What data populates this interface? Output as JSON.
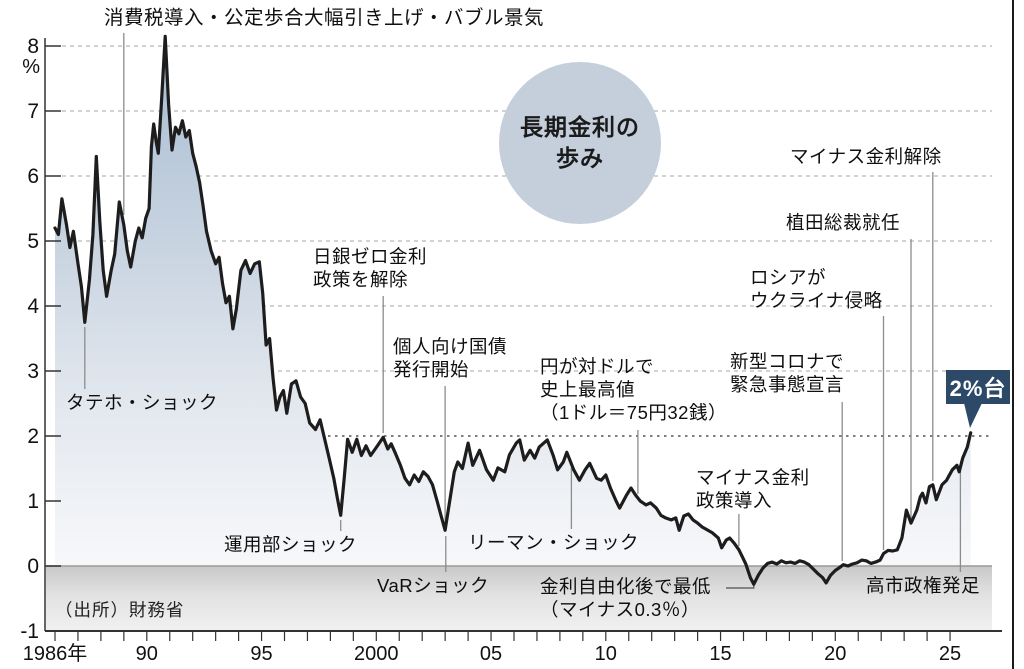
{
  "chart_data": {
    "type": "area",
    "title": "長期金利の\n歩み",
    "unit_label": "%",
    "source": "（出所）財務省",
    "badge": {
      "label": "2%台",
      "color": "#2c4a68"
    },
    "legend": "none",
    "grid": "dashed horizontal lines at 2-8%",
    "xlim": [
      1986,
      2026
    ],
    "ylim": [
      -1,
      8.3
    ],
    "y_ticks": [
      8,
      7,
      6,
      5,
      4,
      3,
      2,
      1,
      0,
      -1
    ],
    "grid_levels": [
      2,
      3,
      4,
      5,
      6,
      7,
      8
    ],
    "x_ticks": [
      {
        "label": "1986年",
        "year": 1986
      },
      {
        "label": "90",
        "year": 1990
      },
      {
        "label": "95",
        "year": 1995
      },
      {
        "label": "2000",
        "year": 2000
      },
      {
        "label": "05",
        "year": 2005
      },
      {
        "label": "10",
        "year": 2010
      },
      {
        "label": "15",
        "year": 2015
      },
      {
        "label": "20",
        "year": 2020
      },
      {
        "label": "25",
        "year": 2025
      }
    ],
    "series": [
      {
        "name": "長期金利",
        "unit": "%",
        "points": [
          [
            1986.0,
            5.2
          ],
          [
            1986.15,
            5.1
          ],
          [
            1986.3,
            5.65
          ],
          [
            1986.5,
            5.25
          ],
          [
            1986.65,
            4.9
          ],
          [
            1986.8,
            5.15
          ],
          [
            1987.0,
            4.65
          ],
          [
            1987.15,
            4.3
          ],
          [
            1987.3,
            3.75
          ],
          [
            1987.5,
            4.4
          ],
          [
            1987.65,
            5.1
          ],
          [
            1987.8,
            6.3
          ],
          [
            1987.95,
            5.3
          ],
          [
            1988.1,
            4.55
          ],
          [
            1988.25,
            4.15
          ],
          [
            1988.45,
            4.55
          ],
          [
            1988.6,
            4.8
          ],
          [
            1988.8,
            5.6
          ],
          [
            1989.0,
            5.25
          ],
          [
            1989.15,
            4.85
          ],
          [
            1989.3,
            4.6
          ],
          [
            1989.5,
            5.0
          ],
          [
            1989.65,
            5.2
          ],
          [
            1989.8,
            5.05
          ],
          [
            1989.95,
            5.35
          ],
          [
            1990.1,
            5.5
          ],
          [
            1990.2,
            6.45
          ],
          [
            1990.3,
            6.8
          ],
          [
            1990.4,
            6.55
          ],
          [
            1990.5,
            6.35
          ],
          [
            1990.65,
            7.2
          ],
          [
            1990.8,
            8.15
          ],
          [
            1990.95,
            7.1
          ],
          [
            1991.1,
            6.4
          ],
          [
            1991.25,
            6.75
          ],
          [
            1991.4,
            6.65
          ],
          [
            1991.55,
            6.85
          ],
          [
            1991.7,
            6.6
          ],
          [
            1991.85,
            6.7
          ],
          [
            1992.0,
            6.35
          ],
          [
            1992.15,
            6.15
          ],
          [
            1992.3,
            5.9
          ],
          [
            1992.45,
            5.55
          ],
          [
            1992.6,
            5.15
          ],
          [
            1992.8,
            4.85
          ],
          [
            1993.0,
            4.65
          ],
          [
            1993.15,
            4.75
          ],
          [
            1993.3,
            4.35
          ],
          [
            1993.45,
            4.05
          ],
          [
            1993.6,
            4.15
          ],
          [
            1993.75,
            3.65
          ],
          [
            1993.9,
            3.95
          ],
          [
            1994.1,
            4.55
          ],
          [
            1994.3,
            4.7
          ],
          [
            1994.5,
            4.5
          ],
          [
            1994.7,
            4.65
          ],
          [
            1994.9,
            4.68
          ],
          [
            1995.05,
            4.2
          ],
          [
            1995.2,
            3.4
          ],
          [
            1995.35,
            3.5
          ],
          [
            1995.5,
            2.9
          ],
          [
            1995.65,
            2.4
          ],
          [
            1995.8,
            2.6
          ],
          [
            1995.95,
            2.7
          ],
          [
            1996.1,
            2.35
          ],
          [
            1996.3,
            2.8
          ],
          [
            1996.5,
            2.85
          ],
          [
            1996.7,
            2.6
          ],
          [
            1996.9,
            2.5
          ],
          [
            1997.1,
            2.2
          ],
          [
            1997.35,
            2.1
          ],
          [
            1997.55,
            2.25
          ],
          [
            1997.75,
            1.95
          ],
          [
            1997.95,
            1.65
          ],
          [
            1998.15,
            1.35
          ],
          [
            1998.3,
            1.05
          ],
          [
            1998.45,
            0.78
          ],
          [
            1998.6,
            1.35
          ],
          [
            1998.75,
            1.95
          ],
          [
            1998.95,
            1.75
          ],
          [
            1999.15,
            1.95
          ],
          [
            1999.35,
            1.7
          ],
          [
            1999.55,
            1.85
          ],
          [
            1999.75,
            1.7
          ],
          [
            1999.95,
            1.8
          ],
          [
            2000.15,
            1.9
          ],
          [
            2000.3,
            1.98
          ],
          [
            2000.5,
            1.8
          ],
          [
            2000.65,
            1.88
          ],
          [
            2000.85,
            1.72
          ],
          [
            2001.05,
            1.55
          ],
          [
            2001.25,
            1.35
          ],
          [
            2001.45,
            1.25
          ],
          [
            2001.65,
            1.4
          ],
          [
            2001.85,
            1.3
          ],
          [
            2002.05,
            1.45
          ],
          [
            2002.25,
            1.38
          ],
          [
            2002.45,
            1.25
          ],
          [
            2002.65,
            1.0
          ],
          [
            2002.8,
            0.8
          ],
          [
            2003.0,
            0.55
          ],
          [
            2003.2,
            1.0
          ],
          [
            2003.4,
            1.45
          ],
          [
            2003.55,
            1.6
          ],
          [
            2003.75,
            1.5
          ],
          [
            2004.0,
            1.89
          ],
          [
            2004.2,
            1.55
          ],
          [
            2004.5,
            1.78
          ],
          [
            2004.8,
            1.48
          ],
          [
            2005.1,
            1.32
          ],
          [
            2005.3,
            1.51
          ],
          [
            2005.6,
            1.45
          ],
          [
            2005.8,
            1.71
          ],
          [
            2006.1,
            1.89
          ],
          [
            2006.25,
            1.94
          ],
          [
            2006.45,
            1.63
          ],
          [
            2006.7,
            1.78
          ],
          [
            2006.9,
            1.66
          ],
          [
            2007.1,
            1.83
          ],
          [
            2007.45,
            1.94
          ],
          [
            2007.7,
            1.71
          ],
          [
            2007.9,
            1.48
          ],
          [
            2008.15,
            1.6
          ],
          [
            2008.3,
            1.75
          ],
          [
            2008.6,
            1.48
          ],
          [
            2008.85,
            1.32
          ],
          [
            2009.1,
            1.48
          ],
          [
            2009.3,
            1.58
          ],
          [
            2009.6,
            1.35
          ],
          [
            2009.8,
            1.32
          ],
          [
            2010.0,
            1.4
          ],
          [
            2010.2,
            1.2
          ],
          [
            2010.45,
            1.0
          ],
          [
            2010.6,
            0.89
          ],
          [
            2010.9,
            1.09
          ],
          [
            2011.1,
            1.2
          ],
          [
            2011.3,
            1.09
          ],
          [
            2011.5,
            1.0
          ],
          [
            2011.75,
            0.94
          ],
          [
            2011.95,
            0.97
          ],
          [
            2012.2,
            0.89
          ],
          [
            2012.4,
            0.78
          ],
          [
            2012.6,
            0.74
          ],
          [
            2012.85,
            0.71
          ],
          [
            2013.05,
            0.74
          ],
          [
            2013.2,
            0.55
          ],
          [
            2013.4,
            0.77
          ],
          [
            2013.6,
            0.8
          ],
          [
            2013.8,
            0.71
          ],
          [
            2014.0,
            0.66
          ],
          [
            2014.2,
            0.6
          ],
          [
            2014.45,
            0.55
          ],
          [
            2014.65,
            0.51
          ],
          [
            2014.9,
            0.43
          ],
          [
            2015.05,
            0.28
          ],
          [
            2015.25,
            0.4
          ],
          [
            2015.4,
            0.43
          ],
          [
            2015.6,
            0.35
          ],
          [
            2015.8,
            0.25
          ],
          [
            2015.95,
            0.14
          ],
          [
            2016.1,
            0.03
          ],
          [
            2016.3,
            -0.18
          ],
          [
            2016.45,
            -0.28
          ],
          [
            2016.65,
            -0.14
          ],
          [
            2016.85,
            -0.03
          ],
          [
            2017.05,
            0.04
          ],
          [
            2017.25,
            0.06
          ],
          [
            2017.45,
            0.03
          ],
          [
            2017.65,
            0.08
          ],
          [
            2017.85,
            0.05
          ],
          [
            2018.05,
            0.06
          ],
          [
            2018.25,
            0.04
          ],
          [
            2018.45,
            0.08
          ],
          [
            2018.65,
            0.06
          ],
          [
            2018.85,
            0.02
          ],
          [
            2019.05,
            -0.05
          ],
          [
            2019.25,
            -0.12
          ],
          [
            2019.45,
            -0.18
          ],
          [
            2019.6,
            -0.26
          ],
          [
            2019.8,
            -0.14
          ],
          [
            2020.0,
            -0.07
          ],
          [
            2020.2,
            -0.02
          ],
          [
            2020.35,
            0.02
          ],
          [
            2020.55,
            0.0
          ],
          [
            2020.75,
            0.03
          ],
          [
            2020.95,
            0.05
          ],
          [
            2021.15,
            0.09
          ],
          [
            2021.35,
            0.08
          ],
          [
            2021.55,
            0.04
          ],
          [
            2021.75,
            0.06
          ],
          [
            2021.95,
            0.09
          ],
          [
            2022.1,
            0.19
          ],
          [
            2022.3,
            0.24
          ],
          [
            2022.5,
            0.23
          ],
          [
            2022.7,
            0.25
          ],
          [
            2022.9,
            0.43
          ],
          [
            2023.1,
            0.86
          ],
          [
            2023.3,
            0.66
          ],
          [
            2023.55,
            0.86
          ],
          [
            2023.7,
            1.06
          ],
          [
            2023.8,
            1.12
          ],
          [
            2023.95,
            0.97
          ],
          [
            2024.1,
            1.22
          ],
          [
            2024.25,
            1.25
          ],
          [
            2024.4,
            1.02
          ],
          [
            2024.65,
            1.25
          ],
          [
            2024.85,
            1.32
          ],
          [
            2025.1,
            1.48
          ],
          [
            2025.3,
            1.55
          ],
          [
            2025.4,
            1.45
          ],
          [
            2025.55,
            1.66
          ],
          [
            2025.75,
            1.83
          ],
          [
            2025.9,
            2.05
          ]
        ]
      }
    ],
    "annotations": [
      {
        "id": "consumption-tax-note",
        "text": "消費税導入・公定歩合大幅引き上げ・バブル景気"
      },
      {
        "id": "tateho",
        "text": "タテホ・ショック"
      },
      {
        "id": "boj-zero-rate-exit",
        "text": "日銀ゼロ金利\n政策を解除"
      },
      {
        "id": "retail-jgb",
        "text": "個人向け国債\n発行開始"
      },
      {
        "id": "yen-record-high",
        "text": "円が対ドルで\n史上最高値\n（1ドル＝75円32銭）"
      },
      {
        "id": "unyobu",
        "text": "運用部ショック"
      },
      {
        "id": "var-shock",
        "text": "VaRショック"
      },
      {
        "id": "lehman",
        "text": "リーマン・ショック"
      },
      {
        "id": "lowest-after-liberalization",
        "text": "金利自由化後で最低\n（マイナス0.3％）"
      },
      {
        "id": "negative-rate-intro",
        "text": "マイナス金利\n政策導入"
      },
      {
        "id": "covid-emergency",
        "text": "新型コロナで\n緊急事態宣言"
      },
      {
        "id": "russia-ukraine",
        "text": "ロシアが\nウクライナ侵略"
      },
      {
        "id": "ueda-governor",
        "text": "植田総裁就任"
      },
      {
        "id": "negative-rate-exit",
        "text": "マイナス金利解除"
      },
      {
        "id": "takaichi-cabinet",
        "text": "高市政権発足"
      }
    ],
    "colors": {
      "line": "#1d1d1d",
      "area_top": "#a8bdd4",
      "area_bottom": "#f7f8fa",
      "circle_bg": "#c5cfdc",
      "badge_bg": "#2c4a68",
      "grid": "#b8b8b8",
      "grid_2pct": "#555555",
      "zero_line": "#9a9a9a",
      "band_top": "#c9c9c9",
      "band_bottom": "#f1f1f1",
      "axis": "#333333",
      "leader": "#8c8c8c"
    }
  }
}
